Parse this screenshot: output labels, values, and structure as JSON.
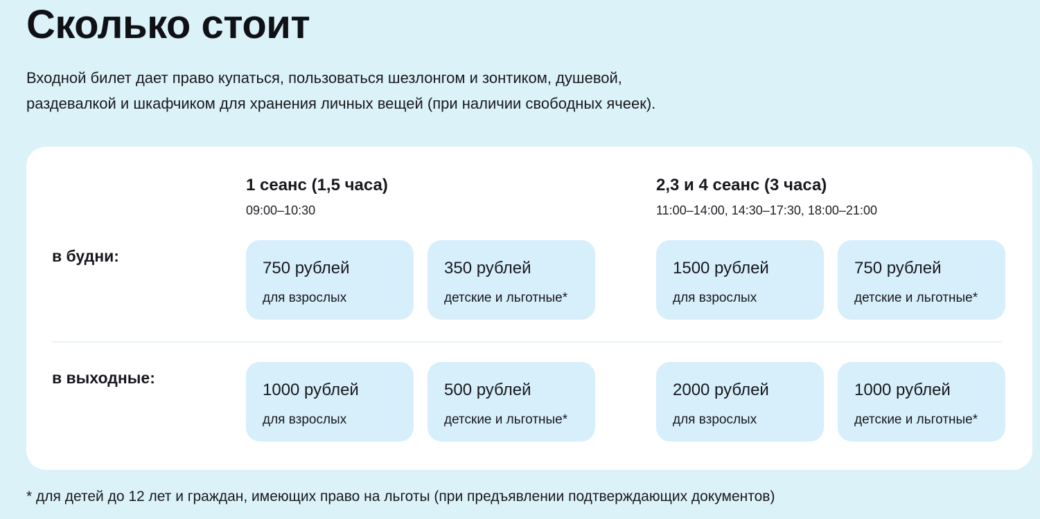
{
  "page": {
    "title": "Сколько стоит",
    "intro_lines": [
      "Входной билет дает право купаться, пользоваться шезлонгом и зонтиком, душевой,",
      "раздевалкой и шкафчиком для хранения личных вещей (при наличии свободных ячеек)."
    ],
    "footnote": "* для детей до 12 лет и граждан, имеющих право на льготы (при предъявлении подтверждающих документов)"
  },
  "pricing": {
    "columns": [
      {
        "title": "1 сеанс (1,5 часа)",
        "times": "09:00–10:30"
      },
      {
        "title": "2,3 и 4 сеанс (3 часа)",
        "times": "11:00–14:00, 14:30–17:30, 18:00–21:00"
      }
    ],
    "rows": [
      {
        "label": "в будни:",
        "prices": [
          {
            "amount": "750 рублей",
            "category": "для взрослых"
          },
          {
            "amount": "350 рублей",
            "category": "детские и льготные*"
          },
          {
            "amount": "1500 рублей",
            "category": "для взрослых"
          },
          {
            "amount": "750 рублей",
            "category": "детские и льготные*"
          }
        ]
      },
      {
        "label": "в выходные:",
        "prices": [
          {
            "amount": "1000 рублей",
            "category": "для взрослых"
          },
          {
            "amount": "500 рублей",
            "category": "детские и льготные*"
          },
          {
            "amount": "2000 рублей",
            "category": "для взрослых"
          },
          {
            "amount": "1000 рублей",
            "category": "детские и льготные*"
          }
        ]
      }
    ]
  },
  "colors": {
    "page_bg": "#dcf2f9",
    "card_bg": "#ffffff",
    "chip_bg": "#d7effb",
    "divider": "#e3f2f9",
    "text": "#17181d"
  }
}
